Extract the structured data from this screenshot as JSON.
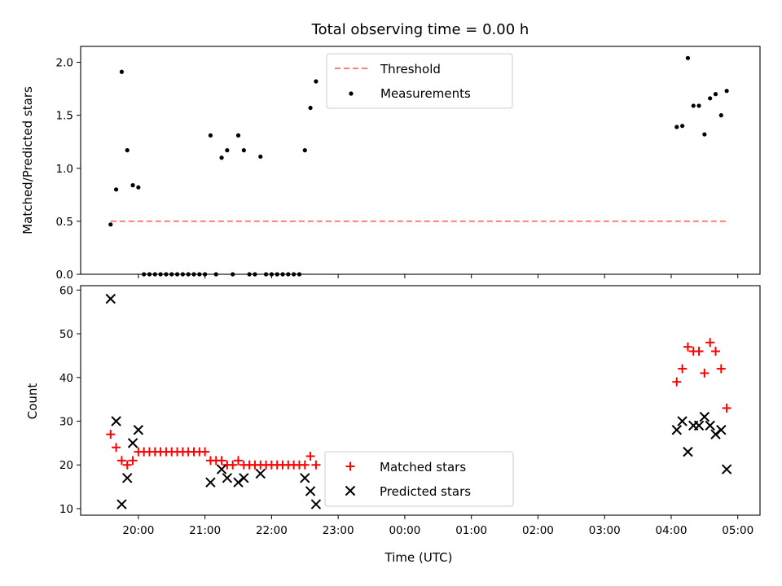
{
  "title": "Total observing time = 0.00 h",
  "xlabel": "Time (UTC)",
  "xtick_labels": [
    "20:00",
    "21:00",
    "22:00",
    "23:00",
    "00:00",
    "01:00",
    "02:00",
    "03:00",
    "04:00",
    "05:00"
  ],
  "top": {
    "ylabel": "Matched/Predicted stars",
    "ytick_labels": [
      "0.0",
      "0.5",
      "1.0",
      "1.5",
      "2.0"
    ],
    "legend": {
      "threshold": "Threshold",
      "measurements": "Measurements"
    }
  },
  "bottom": {
    "ylabel": "Count",
    "ytick_labels": [
      "10",
      "20",
      "30",
      "40",
      "50",
      "60"
    ],
    "legend": {
      "matched": "Matched stars",
      "predicted": "Predicted stars"
    }
  },
  "colors": {
    "matched": "#ff0000",
    "predicted": "#000000",
    "threshold": "#ff7f7f",
    "measurements": "#000000"
  },
  "chart_data": [
    {
      "type": "scatter",
      "title": "Total observing time = 0.00 h",
      "xlabel": "",
      "ylabel": "Matched/Predicted stars",
      "xlim": [
        "19:08",
        "05:20"
      ],
      "ylim": [
        0,
        2.15
      ],
      "threshold": {
        "name": "Threshold",
        "y": 0.5,
        "x_range": [
          "19:35",
          "04:52"
        ]
      },
      "series": [
        {
          "name": "Measurements",
          "points": [
            [
              "19:35",
              0.47
            ],
            [
              "19:40",
              0.8
            ],
            [
              "19:45",
              1.91
            ],
            [
              "19:50",
              1.17
            ],
            [
              "19:55",
              0.84
            ],
            [
              "20:00",
              0.82
            ],
            [
              "20:05",
              0
            ],
            [
              "20:10",
              0
            ],
            [
              "20:15",
              0
            ],
            [
              "20:20",
              0
            ],
            [
              "20:25",
              0
            ],
            [
              "20:30",
              0
            ],
            [
              "20:35",
              0
            ],
            [
              "20:40",
              0
            ],
            [
              "20:45",
              0
            ],
            [
              "20:50",
              0
            ],
            [
              "20:55",
              0
            ],
            [
              "21:00",
              0
            ],
            [
              "21:05",
              1.31
            ],
            [
              "21:10",
              0
            ],
            [
              "21:15",
              1.1
            ],
            [
              "21:20",
              1.17
            ],
            [
              "21:25",
              0
            ],
            [
              "21:30",
              1.31
            ],
            [
              "21:35",
              1.17
            ],
            [
              "21:40",
              0
            ],
            [
              "21:45",
              0
            ],
            [
              "21:50",
              1.11
            ],
            [
              "21:55",
              0
            ],
            [
              "22:00",
              0
            ],
            [
              "22:05",
              0
            ],
            [
              "22:10",
              0
            ],
            [
              "22:15",
              0
            ],
            [
              "22:20",
              0
            ],
            [
              "22:25",
              0
            ],
            [
              "22:30",
              1.17
            ],
            [
              "22:35",
              1.57
            ],
            [
              "22:40",
              1.82
            ],
            [
              "04:05",
              1.39
            ],
            [
              "04:10",
              1.4
            ],
            [
              "04:15",
              2.04
            ],
            [
              "04:20",
              1.59
            ],
            [
              "04:25",
              1.59
            ],
            [
              "04:30",
              1.32
            ],
            [
              "04:35",
              1.66
            ],
            [
              "04:40",
              1.7
            ],
            [
              "04:45",
              1.5
            ],
            [
              "04:50",
              1.73
            ]
          ]
        }
      ]
    },
    {
      "type": "scatter",
      "xlabel": "Time (UTC)",
      "ylabel": "Count",
      "xlim": [
        "19:08",
        "05:20"
      ],
      "ylim": [
        8.5,
        61
      ],
      "series": [
        {
          "name": "Matched stars",
          "marker": "+",
          "points": [
            [
              "19:35",
              27
            ],
            [
              "19:40",
              24
            ],
            [
              "19:45",
              21
            ],
            [
              "19:50",
              20
            ],
            [
              "19:55",
              21
            ],
            [
              "20:00",
              23
            ],
            [
              "20:05",
              23
            ],
            [
              "20:10",
              23
            ],
            [
              "20:15",
              23
            ],
            [
              "20:20",
              23
            ],
            [
              "20:25",
              23
            ],
            [
              "20:30",
              23
            ],
            [
              "20:35",
              23
            ],
            [
              "20:40",
              23
            ],
            [
              "20:45",
              23
            ],
            [
              "20:50",
              23
            ],
            [
              "20:55",
              23
            ],
            [
              "21:00",
              23
            ],
            [
              "21:05",
              21
            ],
            [
              "21:10",
              21
            ],
            [
              "21:15",
              21
            ],
            [
              "21:20",
              20
            ],
            [
              "21:25",
              20
            ],
            [
              "21:30",
              21
            ],
            [
              "21:35",
              20
            ],
            [
              "21:40",
              20
            ],
            [
              "21:45",
              20
            ],
            [
              "21:50",
              20
            ],
            [
              "21:55",
              20
            ],
            [
              "22:00",
              20
            ],
            [
              "22:05",
              20
            ],
            [
              "22:10",
              20
            ],
            [
              "22:15",
              20
            ],
            [
              "22:20",
              20
            ],
            [
              "22:25",
              20
            ],
            [
              "22:30",
              20
            ],
            [
              "22:35",
              22
            ],
            [
              "22:40",
              20
            ],
            [
              "04:05",
              39
            ],
            [
              "04:10",
              42
            ],
            [
              "04:15",
              47
            ],
            [
              "04:20",
              46
            ],
            [
              "04:25",
              46
            ],
            [
              "04:30",
              41
            ],
            [
              "04:35",
              48
            ],
            [
              "04:40",
              46
            ],
            [
              "04:45",
              42
            ],
            [
              "04:50",
              33
            ]
          ]
        },
        {
          "name": "Predicted stars",
          "marker": "x",
          "points": [
            [
              "19:35",
              58
            ],
            [
              "19:40",
              30
            ],
            [
              "19:45",
              11
            ],
            [
              "19:50",
              17
            ],
            [
              "19:55",
              25
            ],
            [
              "20:00",
              28
            ],
            [
              "21:05",
              16
            ],
            [
              "21:15",
              19
            ],
            [
              "21:20",
              17
            ],
            [
              "21:30",
              16
            ],
            [
              "21:35",
              17
            ],
            [
              "21:50",
              18
            ],
            [
              "22:30",
              17
            ],
            [
              "22:35",
              14
            ],
            [
              "22:40",
              11
            ],
            [
              "04:05",
              28
            ],
            [
              "04:10",
              30
            ],
            [
              "04:15",
              23
            ],
            [
              "04:20",
              29
            ],
            [
              "04:25",
              29
            ],
            [
              "04:30",
              31
            ],
            [
              "04:35",
              29
            ],
            [
              "04:40",
              27
            ],
            [
              "04:45",
              28
            ],
            [
              "04:50",
              19
            ]
          ]
        }
      ]
    }
  ]
}
